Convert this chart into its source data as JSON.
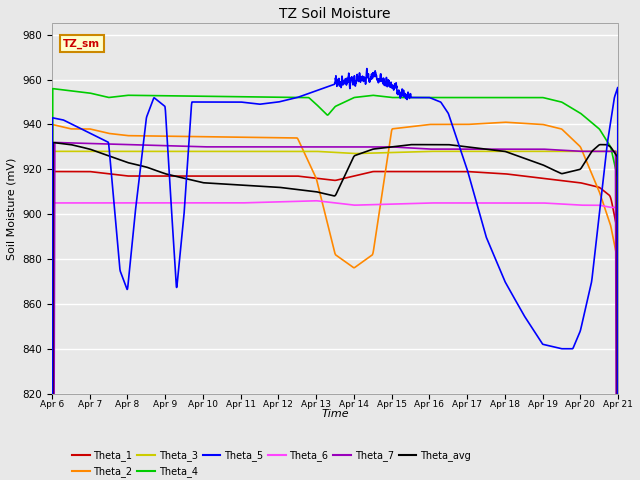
{
  "title": "TZ Soil Moisture",
  "xlabel": "Time",
  "ylabel": "Soil Moisture (mV)",
  "ylim": [
    820,
    985
  ],
  "xlim": [
    0,
    15
  ],
  "x_tick_labels": [
    "Apr 6",
    "Apr 7",
    "Apr 8",
    "Apr 9",
    "Apr 10",
    "Apr 11",
    "Apr 12",
    "Apr 13",
    "Apr 14",
    "Apr 15",
    "Apr 16",
    "Apr 17",
    "Apr 18",
    "Apr 19",
    "Apr 20",
    "Apr 21"
  ],
  "background_color": "#e8e8e8",
  "grid_color": "#ffffff",
  "colors": {
    "Theta_1": "#cc0000",
    "Theta_2": "#ff8800",
    "Theta_3": "#cccc00",
    "Theta_4": "#00cc00",
    "Theta_5": "#0000ff",
    "Theta_6": "#ff44ff",
    "Theta_7": "#9900bb",
    "Theta_avg": "#000000"
  },
  "annotation_box": {
    "text": "TZ_sm",
    "facecolor": "#ffffcc",
    "edgecolor": "#cc8800",
    "textcolor": "#cc0000"
  }
}
